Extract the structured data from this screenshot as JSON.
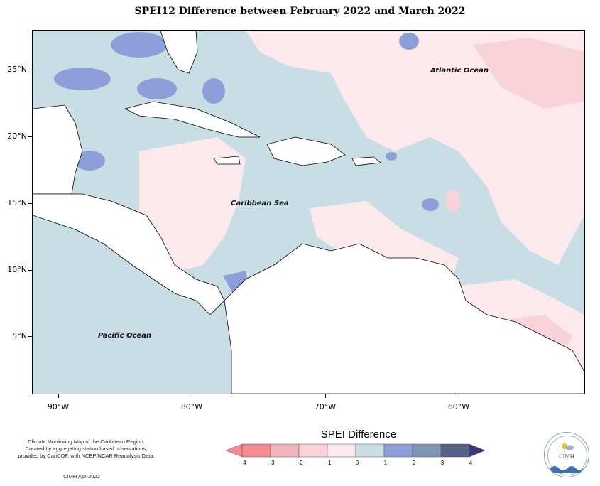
{
  "title": "SPEI12 Difference between February 2022 and March 2022",
  "map": {
    "latitude_labels": [
      "25°N",
      "20°N",
      "15°N",
      "10°N",
      "5°N"
    ],
    "longitude_labels": [
      "90°W",
      "80°W",
      "70°W",
      "60°W"
    ],
    "ocean_labels": {
      "atlantic": "Atlantic Ocean",
      "caribbean": "Caribbean Sea",
      "pacific": "Pacific Ocean"
    }
  },
  "legend": {
    "title": "SPEI Difference",
    "ticks": [
      "-4",
      "-3",
      "-2",
      "-1",
      "0",
      "1",
      "2",
      "3",
      "4"
    ],
    "colors": [
      "#f58a90",
      "#f3b4bb",
      "#f8d3da",
      "#fbe9ec",
      "#c9dde4",
      "#8d9fd8",
      "#7f97b4",
      "#566089",
      "#383879"
    ]
  },
  "credit": {
    "lines": [
      "Climate Monitoring Map of the Caribbean Region.",
      "Created by aggregating station based observations,",
      "provided by CariCOF, with NCEP/NCAR Reanalysis Data."
    ],
    "stamp": "CIMH Apr-2022"
  },
  "logo": {
    "text": "CIMH"
  },
  "colors": {
    "neutral": "#c9dde4",
    "slight_dry": "#fbe9ec",
    "dry": "#f8d3da",
    "wet": "#8d9fd8",
    "land": "#ffffff"
  }
}
